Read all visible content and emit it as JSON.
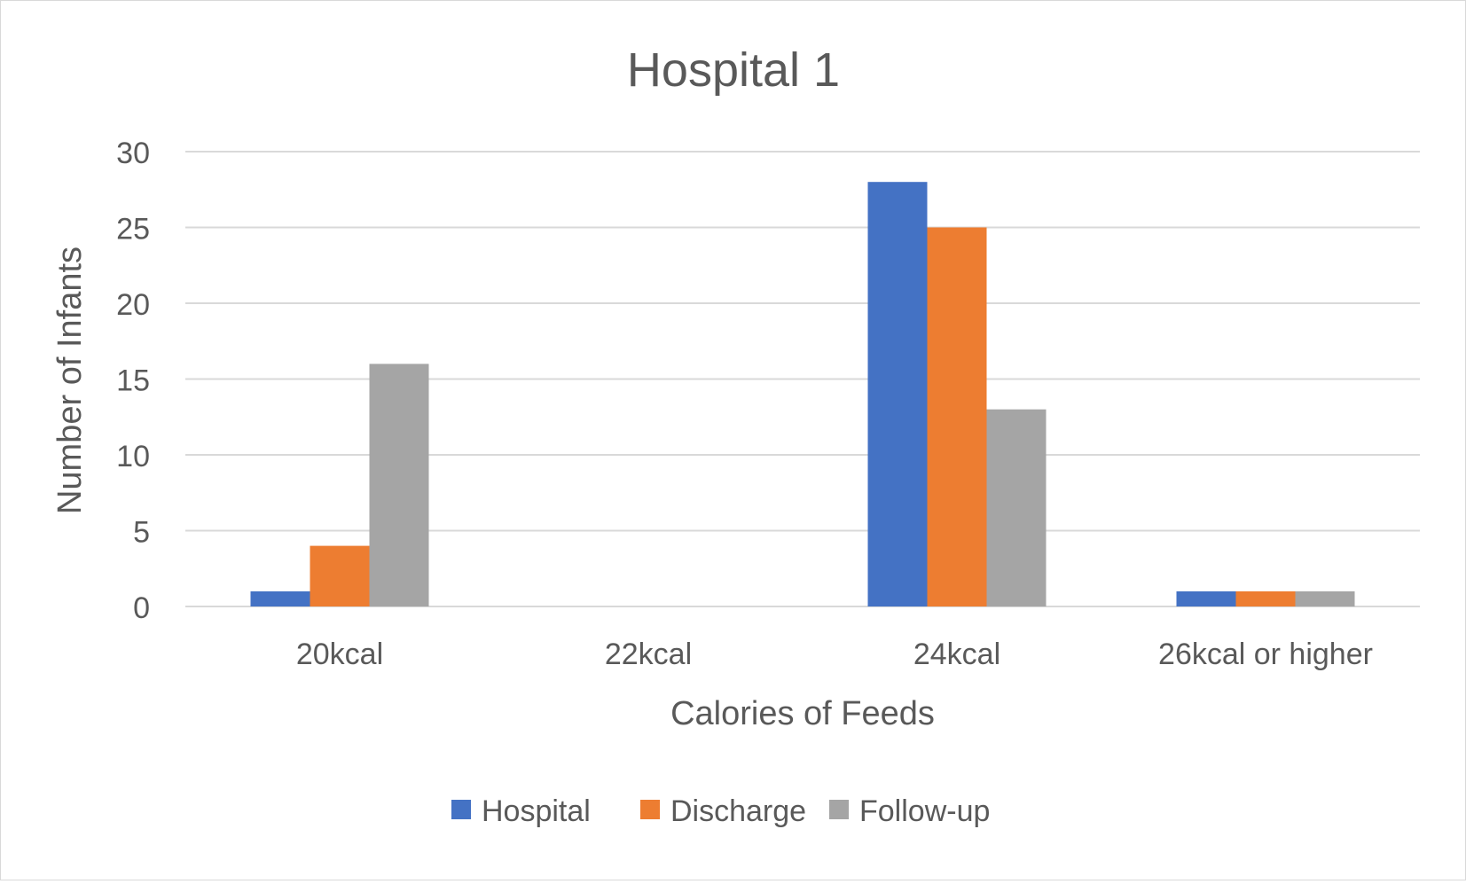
{
  "chart_data": {
    "type": "bar",
    "title": "Hospital 1",
    "xlabel": "Calories of Feeds",
    "ylabel": "Number of Infants",
    "categories": [
      "20kcal",
      "22kcal",
      "24kcal",
      "26kcal or higher"
    ],
    "series": [
      {
        "name": "Hospital",
        "color": "#4472C4",
        "values": [
          1,
          0,
          28,
          1
        ]
      },
      {
        "name": "Discharge",
        "color": "#ED7D31",
        "values": [
          4,
          0,
          25,
          1
        ]
      },
      {
        "name": "Follow-up",
        "color": "#A5A5A5",
        "values": [
          16,
          0,
          13,
          1
        ]
      }
    ],
    "ylim": [
      0,
      30
    ],
    "yticks": [
      0,
      5,
      10,
      15,
      20,
      25,
      30
    ],
    "grid": true,
    "legend": "bottom",
    "gridColor": "#d9d9d9",
    "textColor": "#595959"
  }
}
